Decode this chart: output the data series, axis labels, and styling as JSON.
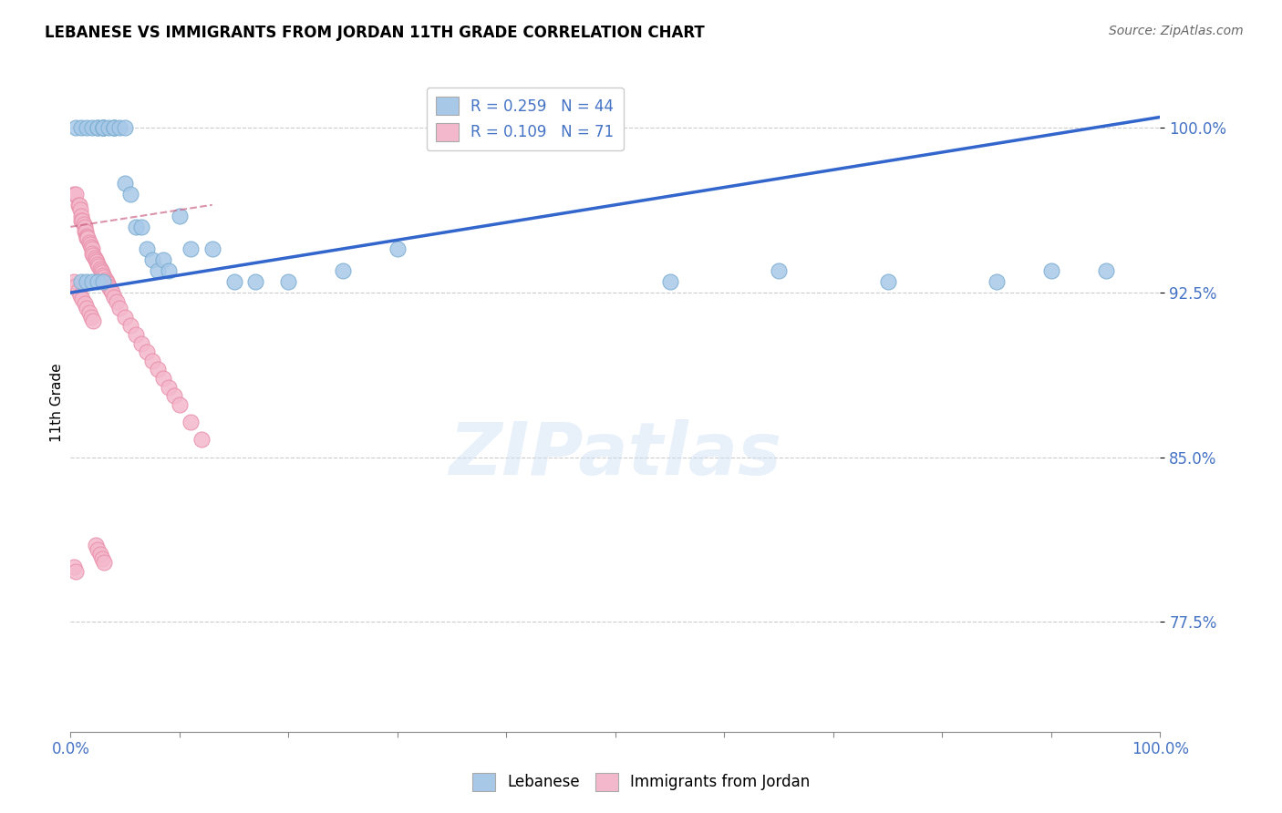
{
  "title": "LEBANESE VS IMMIGRANTS FROM JORDAN 11TH GRADE CORRELATION CHART",
  "source": "Source: ZipAtlas.com",
  "ylabel": "11th Grade",
  "xlim": [
    0.0,
    1.0
  ],
  "ylim": [
    0.725,
    1.025
  ],
  "yticks": [
    0.775,
    0.85,
    0.925,
    1.0
  ],
  "ytick_labels": [
    "77.5%",
    "85.0%",
    "92.5%",
    "100.0%"
  ],
  "legend_R_blue": "R = 0.259",
  "legend_N_blue": "N = 44",
  "legend_R_pink": "R = 0.109",
  "legend_N_pink": "N = 71",
  "blue_color": "#a8c8e8",
  "blue_edge_color": "#7aaed0",
  "pink_color": "#f4b8cc",
  "pink_edge_color": "#e890aa",
  "trendline_blue_color": "#3366cc",
  "trendline_pink_color": "#cc6688",
  "watermark": "ZIPatlas",
  "blue_x": [
    0.005,
    0.01,
    0.015,
    0.02,
    0.025,
    0.025,
    0.03,
    0.03,
    0.03,
    0.03,
    0.035,
    0.04,
    0.04,
    0.04,
    0.045,
    0.05,
    0.05,
    0.055,
    0.06,
    0.065,
    0.07,
    0.075,
    0.08,
    0.085,
    0.09,
    0.1,
    0.11,
    0.13,
    0.15,
    0.17,
    0.2,
    0.25,
    0.3,
    0.55,
    0.65,
    0.75,
    0.85,
    0.9,
    0.95,
    0.01,
    0.015,
    0.02,
    0.025,
    0.03
  ],
  "blue_y": [
    1.0,
    1.0,
    1.0,
    1.0,
    1.0,
    1.0,
    1.0,
    1.0,
    1.0,
    1.0,
    1.0,
    1.0,
    1.0,
    1.0,
    1.0,
    1.0,
    0.975,
    0.97,
    0.955,
    0.955,
    0.945,
    0.94,
    0.935,
    0.94,
    0.935,
    0.96,
    0.945,
    0.945,
    0.93,
    0.93,
    0.93,
    0.935,
    0.945,
    0.93,
    0.935,
    0.93,
    0.93,
    0.935,
    0.935,
    0.93,
    0.93,
    0.93,
    0.93,
    0.93
  ],
  "pink_x": [
    0.003,
    0.005,
    0.007,
    0.008,
    0.009,
    0.01,
    0.01,
    0.011,
    0.012,
    0.013,
    0.013,
    0.014,
    0.015,
    0.015,
    0.016,
    0.017,
    0.018,
    0.019,
    0.02,
    0.02,
    0.021,
    0.022,
    0.023,
    0.024,
    0.025,
    0.026,
    0.027,
    0.028,
    0.029,
    0.03,
    0.031,
    0.032,
    0.033,
    0.034,
    0.035,
    0.036,
    0.037,
    0.038,
    0.04,
    0.042,
    0.045,
    0.05,
    0.055,
    0.06,
    0.065,
    0.07,
    0.075,
    0.08,
    0.085,
    0.09,
    0.095,
    0.1,
    0.11,
    0.12,
    0.003,
    0.005,
    0.007,
    0.009,
    0.011,
    0.013,
    0.015,
    0.017,
    0.019,
    0.021,
    0.023,
    0.025,
    0.027,
    0.029,
    0.031,
    0.003,
    0.005
  ],
  "pink_y": [
    0.97,
    0.97,
    0.965,
    0.965,
    0.963,
    0.96,
    0.958,
    0.958,
    0.956,
    0.955,
    0.953,
    0.953,
    0.951,
    0.95,
    0.95,
    0.948,
    0.947,
    0.946,
    0.945,
    0.943,
    0.942,
    0.941,
    0.94,
    0.939,
    0.938,
    0.937,
    0.936,
    0.935,
    0.934,
    0.933,
    0.932,
    0.931,
    0.93,
    0.929,
    0.928,
    0.927,
    0.926,
    0.925,
    0.923,
    0.921,
    0.918,
    0.914,
    0.91,
    0.906,
    0.902,
    0.898,
    0.894,
    0.89,
    0.886,
    0.882,
    0.878,
    0.874,
    0.866,
    0.858,
    0.93,
    0.928,
    0.926,
    0.924,
    0.922,
    0.92,
    0.918,
    0.916,
    0.914,
    0.912,
    0.81,
    0.808,
    0.806,
    0.804,
    0.802,
    0.8,
    0.798
  ]
}
